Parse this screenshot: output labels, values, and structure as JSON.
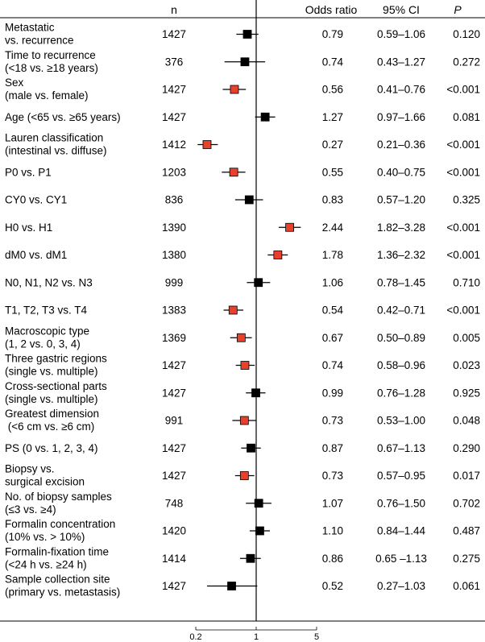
{
  "chart_data": {
    "type": "forest",
    "columns": {
      "n": "n",
      "odds_ratio": "Odds ratio",
      "ci": "95% CI",
      "p": "P"
    },
    "x_scale": "log",
    "xlim": [
      0.2,
      5
    ],
    "ticks": [
      {
        "value": 0.2,
        "label": "0.2"
      },
      {
        "value": 1,
        "label": "1"
      },
      {
        "value": 5,
        "label": "5"
      }
    ],
    "reference_line": 1,
    "significant_color": "#e8402a",
    "nonsignificant_color": "#000000",
    "rows": [
      {
        "label1": "Metastatic",
        "label2": "vs. recurrence",
        "n": "1427",
        "or": 0.79,
        "lo": 0.59,
        "hi": 1.06,
        "or_text": "0.79",
        "ci_text": "0.59–1.06",
        "p_text": "0.120",
        "significant": false
      },
      {
        "label1": "Time to recurrence",
        "label2": "(<18 vs. ≥18 years)",
        "n": "376",
        "or": 0.74,
        "lo": 0.43,
        "hi": 1.27,
        "or_text": "0.74",
        "ci_text": "0.43–1.27",
        "p_text": "0.272",
        "significant": false
      },
      {
        "label1": "Sex",
        "label2": "(male vs. female)",
        "n": "1427",
        "or": 0.56,
        "lo": 0.41,
        "hi": 0.76,
        "or_text": "0.56",
        "ci_text": "0.41–0.76",
        "p_text": "<0.001",
        "significant": true
      },
      {
        "label1": "Age (<65 vs. ≥65 years)",
        "label2": "",
        "n": "1427",
        "or": 1.27,
        "lo": 0.97,
        "hi": 1.66,
        "or_text": "1.27",
        "ci_text": "0.97–1.66",
        "p_text": "0.081",
        "significant": false
      },
      {
        "label1": "Lauren classification",
        "label2": "(intestinal vs. diffuse)",
        "n": "1412",
        "or": 0.27,
        "lo": 0.21,
        "hi": 0.36,
        "or_text": "0.27",
        "ci_text": "0.21–0.36",
        "p_text": "<0.001",
        "significant": true
      },
      {
        "label1": "P0 vs. P1",
        "label2": "",
        "n": "1203",
        "or": 0.55,
        "lo": 0.4,
        "hi": 0.75,
        "or_text": "0.55",
        "ci_text": "0.40–0.75",
        "p_text": "<0.001",
        "significant": true
      },
      {
        "label1": "CY0 vs. CY1",
        "label2": "",
        "n": "836",
        "or": 0.83,
        "lo": 0.57,
        "hi": 1.2,
        "or_text": "0.83",
        "ci_text": "0.57–1.20",
        "p_text": "0.325",
        "significant": false
      },
      {
        "label1": "H0 vs. H1",
        "label2": "",
        "n": "1390",
        "or": 2.44,
        "lo": 1.82,
        "hi": 3.28,
        "or_text": "2.44",
        "ci_text": "1.82–3.28",
        "p_text": "<0.001",
        "significant": true
      },
      {
        "label1": "dM0 vs. dM1",
        "label2": "",
        "n": "1380",
        "or": 1.78,
        "lo": 1.36,
        "hi": 2.32,
        "or_text": "1.78",
        "ci_text": "1.36–2.32",
        "p_text": "<0.001",
        "significant": true
      },
      {
        "label1": "N0, N1, N2 vs. N3",
        "label2": "",
        "n": "999",
        "or": 1.06,
        "lo": 0.78,
        "hi": 1.45,
        "or_text": "1.06",
        "ci_text": "0.78–1.45",
        "p_text": "0.710",
        "significant": false
      },
      {
        "label1": "T1, T2, T3 vs. T4",
        "label2": "",
        "n": "1383",
        "or": 0.54,
        "lo": 0.42,
        "hi": 0.71,
        "or_text": "0.54",
        "ci_text": "0.42–0.71",
        "p_text": "<0.001",
        "significant": true
      },
      {
        "label1": "Macroscopic type",
        "label2": "(1, 2 vs. 0, 3, 4)",
        "n": "1369",
        "or": 0.67,
        "lo": 0.5,
        "hi": 0.89,
        "or_text": "0.67",
        "ci_text": "0.50–0.89",
        "p_text": "0.005",
        "significant": true
      },
      {
        "label1": "Three gastric regions",
        "label2": "(single vs. multiple)",
        "n": "1427",
        "or": 0.74,
        "lo": 0.58,
        "hi": 0.96,
        "or_text": "0.74",
        "ci_text": "0.58–0.96",
        "p_text": "0.023",
        "significant": true
      },
      {
        "label1": "Cross-sectional parts",
        "label2": "(single vs. multiple)",
        "n": "1427",
        "or": 0.99,
        "lo": 0.76,
        "hi": 1.28,
        "or_text": "0.99",
        "ci_text": "0.76–1.28",
        "p_text": "0.925",
        "significant": false
      },
      {
        "label1": "Greatest dimension",
        "label2": " (<6 cm vs. ≥6 cm)",
        "n": "991",
        "or": 0.73,
        "lo": 0.53,
        "hi": 1.0,
        "or_text": "0.73",
        "ci_text": "0.53–1.00",
        "p_text": "0.048",
        "significant": true
      },
      {
        "label1": "PS (0 vs. 1, 2, 3, 4)",
        "label2": "",
        "n": "1427",
        "or": 0.87,
        "lo": 0.67,
        "hi": 1.13,
        "or_text": "0.87",
        "ci_text": "0.67–1.13",
        "p_text": "0.290",
        "significant": false
      },
      {
        "label1": "Biopsy vs.",
        "label2": "surgical excision",
        "n": "1427",
        "or": 0.73,
        "lo": 0.57,
        "hi": 0.95,
        "or_text": "0.73",
        "ci_text": "0.57–0.95",
        "p_text": "0.017",
        "significant": true
      },
      {
        "label1": "No. of biopsy samples",
        "label2": "(≤3 vs. ≥4)",
        "n": "748",
        "or": 1.07,
        "lo": 0.76,
        "hi": 1.5,
        "or_text": "1.07",
        "ci_text": "0.76–1.50",
        "p_text": "0.702",
        "significant": false
      },
      {
        "label1": "Formalin concentration",
        "label2": "(10% vs. > 10%)",
        "n": "1420",
        "or": 1.1,
        "lo": 0.84,
        "hi": 1.44,
        "or_text": "1.10",
        "ci_text": "0.84–1.44",
        "p_text": "0.487",
        "significant": false
      },
      {
        "label1": "Formalin-fixation time",
        "label2": "(<24 h vs. ≥24 h)",
        "n": "1414",
        "or": 0.86,
        "lo": 0.65,
        "hi": 1.13,
        "or_text": "0.86",
        "ci_text": "0.65 –1.13",
        "p_text": "0.275",
        "significant": false
      },
      {
        "label1": "Sample collection site",
        "label2": "(primary vs. metastasis)",
        "n": "1427",
        "or": 0.52,
        "lo": 0.27,
        "hi": 1.03,
        "or_text": "0.52",
        "ci_text": "0.27–1.03",
        "p_text": "0.061",
        "significant": false
      }
    ]
  }
}
